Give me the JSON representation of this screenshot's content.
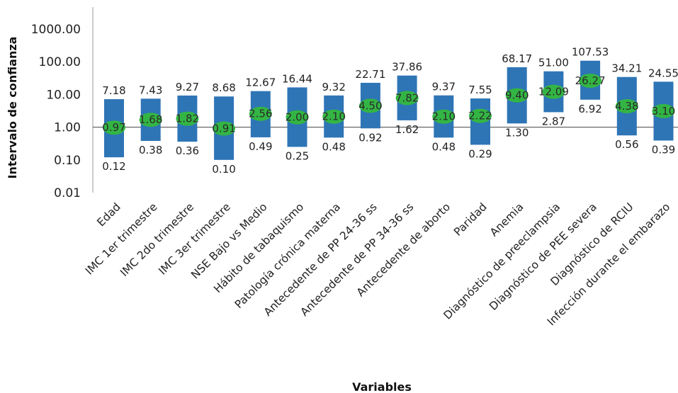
{
  "chart_data": {
    "type": "bar",
    "scale": "log",
    "ylabel": "Intervalo de confianza",
    "xlabel": "Variables",
    "ylim": [
      0.01,
      1000
    ],
    "y_ticks": [
      {
        "value": 0.01,
        "label": "0.01"
      },
      {
        "value": 0.1,
        "label": "0.10"
      },
      {
        "value": 1,
        "label": "1.00"
      },
      {
        "value": 10,
        "label": "10.00"
      },
      {
        "value": 100,
        "label": "100.00"
      },
      {
        "value": 1000,
        "label": "1000.00"
      }
    ],
    "reference_line": 1,
    "colors": {
      "interval": "#2e75b6",
      "point": "#33b544"
    },
    "series": [
      {
        "category": "Edad",
        "lower": "0.12",
        "or": "0.97",
        "upper": "7.18"
      },
      {
        "category": "IMC 1er trimestre",
        "lower": "0.38",
        "or": "1.68",
        "upper": "7.43"
      },
      {
        "category": "IMC 2do trimestre",
        "lower": "0.36",
        "or": "1.82",
        "upper": "9.27"
      },
      {
        "category": "IMC 3er trimestre",
        "lower": "0.10",
        "or": "0.91",
        "upper": "8.68"
      },
      {
        "category": "NSE Bajo vs Medio",
        "lower": "0.49",
        "or": "2.56",
        "upper": "12.67"
      },
      {
        "category": "Hábito de tabaquismo",
        "lower": "0.25",
        "or": "2.00",
        "upper": "16.44"
      },
      {
        "category": "Patología crónica materna",
        "lower": "0.48",
        "or": "2.10",
        "upper": "9.32"
      },
      {
        "category": "Antecedente de PP 24-36 ss",
        "lower": "0.92",
        "or": "4.50",
        "upper": "22.71"
      },
      {
        "category": "Antecedente de PP 34-36 ss",
        "lower": "1.62",
        "or": "7.82",
        "upper": "37.86"
      },
      {
        "category": "Antecedente de aborto",
        "lower": "0.48",
        "or": "2.10",
        "upper": "9.37"
      },
      {
        "category": "Paridad",
        "lower": "0.29",
        "or": "2.22",
        "upper": "7.55"
      },
      {
        "category": "Anemia",
        "lower": "1.30",
        "or": "9.40",
        "upper": "68.17"
      },
      {
        "category": "Diagnóstico de preeclampsia",
        "lower": "2.87",
        "or": "12.09",
        "upper": "51.00"
      },
      {
        "category": "Diagnóstico de PEE severa",
        "lower": "6.92",
        "or": "26.27",
        "upper": "107.53"
      },
      {
        "category": "Diagnóstico de RCIU",
        "lower": "0.56",
        "or": "4.38",
        "upper": "34.21"
      },
      {
        "category": "Infección durante el embarazo",
        "lower": "0.39",
        "or": "3.10",
        "upper": "24.55"
      }
    ]
  }
}
